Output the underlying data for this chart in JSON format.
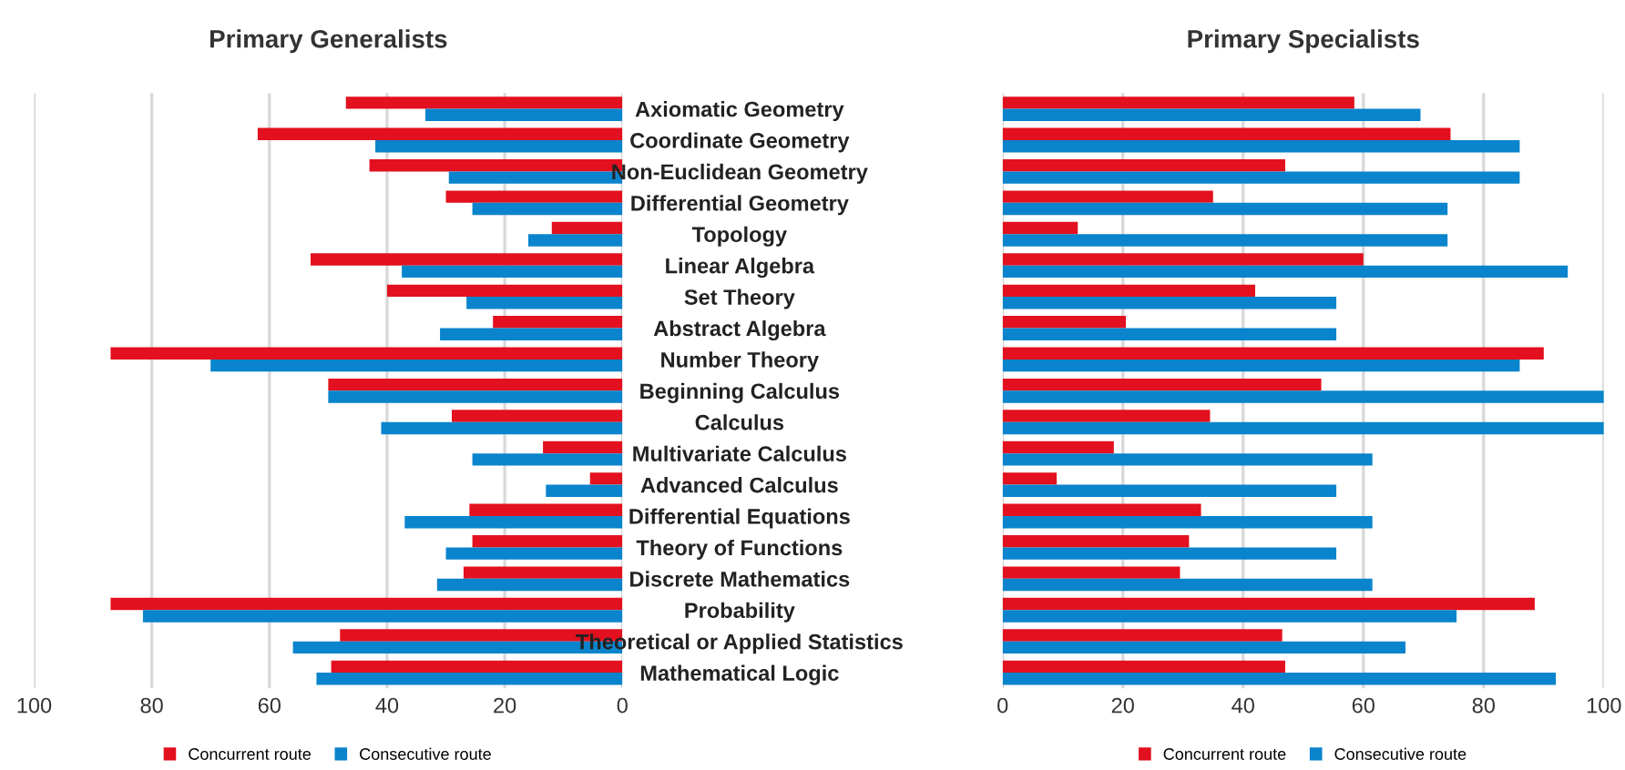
{
  "chart_data": [
    {
      "type": "bar",
      "orientation": "horizontal",
      "title": "Primary Generalists",
      "categories": [
        null,
        null,
        null,
        null,
        null,
        null,
        null,
        null,
        null,
        null,
        null,
        null,
        null,
        null,
        null,
        null,
        null,
        null,
        null
      ],
      "series": [
        {
          "name": "Concurrent route",
          "color": "#e3101f",
          "values": [
            47,
            62,
            43,
            30,
            12,
            53,
            40,
            22,
            87,
            50,
            29,
            13.5,
            5.5,
            26,
            25.5,
            27,
            87,
            48,
            49.5
          ]
        },
        {
          "name": "Consecutive route",
          "color": "#0a84cc",
          "values": [
            33.5,
            42,
            29.5,
            25.5,
            16,
            37.5,
            26.5,
            31,
            70,
            50,
            41,
            25.5,
            13,
            37,
            30,
            31.5,
            81.5,
            56,
            52
          ]
        }
      ],
      "xlim": [
        100,
        0
      ],
      "xticks": [
        100,
        80,
        60,
        40,
        20,
        0
      ],
      "grid": "x",
      "legend": "bottom",
      "tick_labels": "x"
    },
    {
      "type": "bar",
      "orientation": "horizontal",
      "title": "Primary Specialists",
      "categories": [
        "Axiomatic Geometry",
        "Coordinate Geometry",
        "Non-Euclidean Geometry",
        "Differential Geometry",
        "Topology",
        "Linear Algebra",
        "Set Theory",
        "Abstract Algebra",
        "Number Theory",
        "Beginning Calculus",
        "Calculus",
        "Multivariate Calculus",
        "Advanced Calculus",
        "Differential Equations",
        "Theory of Functions",
        "Discrete Mathematics",
        "Probability",
        "Theoretical or Applied Statistics",
        "Mathematical Logic"
      ],
      "series": [
        {
          "name": "Concurrent route",
          "color": "#e3101f",
          "values": [
            58.5,
            74.5,
            47,
            35,
            12.5,
            60,
            42,
            20.5,
            90,
            53,
            34.5,
            18.5,
            9,
            33,
            31,
            29.5,
            88.5,
            46.5,
            47
          ]
        },
        {
          "name": "Consecutive route",
          "color": "#0a84cc",
          "values": [
            69.5,
            86,
            86,
            74,
            74,
            94,
            55.5,
            55.5,
            86,
            100,
            100,
            61.5,
            55.5,
            61.5,
            55.5,
            61.5,
            75.5,
            67,
            92
          ]
        }
      ],
      "xlim": [
        0,
        100
      ],
      "xticks": [
        0,
        20,
        40,
        60,
        80,
        100
      ],
      "grid": "x",
      "legend": "bottom"
    }
  ]
}
